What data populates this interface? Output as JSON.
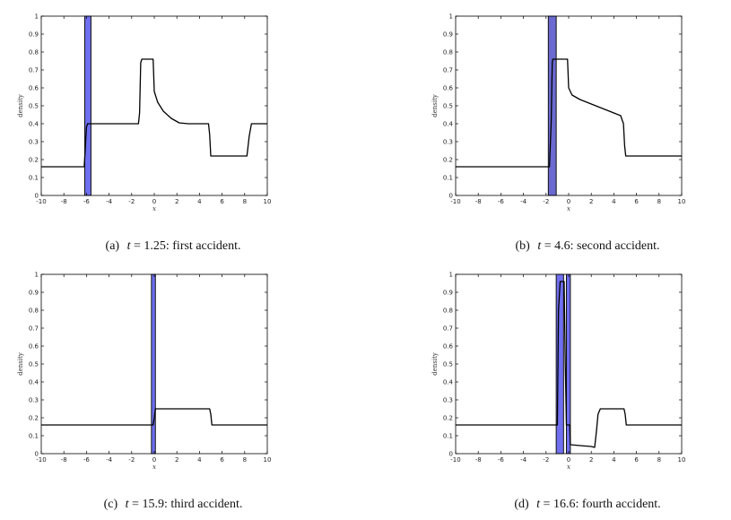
{
  "chart_data": [
    {
      "type": "line",
      "panel_label": "(a)",
      "caption_var": "t",
      "caption_eq": "=",
      "caption_value": "1.25:",
      "caption_text": "first accident.",
      "xlabel": "x",
      "ylabel": "density",
      "xlim": [
        -10,
        10
      ],
      "ylim": [
        0,
        1
      ],
      "xticks": [
        "-10",
        "-8",
        "-6",
        "-4",
        "-2",
        "0",
        "2",
        "4",
        "6",
        "8",
        "10"
      ],
      "yticks": [
        "0",
        "0.1",
        "0.2",
        "0.3",
        "0.4",
        "0.5",
        "0.6",
        "0.7",
        "0.8",
        "0.9",
        "1"
      ],
      "grid": false,
      "bands": [
        {
          "x_start": -6.15,
          "x_end": -5.6,
          "color": "#6f6ff0"
        }
      ],
      "series": [
        {
          "color": "#000000",
          "x": [
            -10,
            -6.2,
            -6.0,
            -5.9,
            -1.4,
            -1.3,
            -1.2,
            -1.1,
            -0.1,
            0.0,
            0.3,
            0.8,
            1.5,
            2.2,
            3.0,
            4.8,
            4.9,
            5.0,
            8.2,
            8.4,
            8.6,
            10
          ],
          "y": [
            0.16,
            0.16,
            0.38,
            0.4,
            0.4,
            0.46,
            0.74,
            0.76,
            0.76,
            0.58,
            0.52,
            0.47,
            0.43,
            0.405,
            0.4,
            0.4,
            0.34,
            0.22,
            0.22,
            0.33,
            0.4,
            0.4
          ]
        }
      ]
    },
    {
      "type": "line",
      "panel_label": "(b)",
      "caption_var": "t",
      "caption_eq": "=",
      "caption_value": "4.6:",
      "caption_text": "second accident.",
      "xlabel": "x",
      "ylabel": "density",
      "xlim": [
        -10,
        10
      ],
      "ylim": [
        0,
        1
      ],
      "xticks": [
        "-10",
        "-8",
        "-6",
        "-4",
        "-2",
        "0",
        "2",
        "4",
        "6",
        "8",
        "10"
      ],
      "yticks": [
        "0",
        "0.1",
        "0.2",
        "0.3",
        "0.4",
        "0.5",
        "0.6",
        "0.7",
        "0.8",
        "0.9",
        "1"
      ],
      "grid": false,
      "bands": [
        {
          "x_start": -1.8,
          "x_end": -1.1,
          "color": "#6a6ad0"
        }
      ],
      "series": [
        {
          "color": "#000000",
          "x": [
            -10,
            -1.9,
            -1.7,
            -1.55,
            -1.45,
            -1.4,
            -0.1,
            0.0,
            0.3,
            1.0,
            2.0,
            3.0,
            4.0,
            4.6,
            4.85,
            4.95,
            5.05,
            10
          ],
          "y": [
            0.16,
            0.16,
            0.16,
            0.4,
            0.74,
            0.76,
            0.76,
            0.6,
            0.56,
            0.535,
            0.51,
            0.485,
            0.46,
            0.445,
            0.4,
            0.28,
            0.22,
            0.22
          ]
        }
      ]
    },
    {
      "type": "line",
      "panel_label": "(c)",
      "caption_var": "t",
      "caption_eq": "=",
      "caption_value": "15.9:",
      "caption_text": "third accident.",
      "xlabel": "x",
      "ylabel": "density",
      "xlim": [
        -10,
        10
      ],
      "ylim": [
        0,
        1
      ],
      "xticks": [
        "-10",
        "-8",
        "-6",
        "-4",
        "-2",
        "0",
        "2",
        "4",
        "6",
        "8",
        "10"
      ],
      "yticks": [
        "0",
        "0.1",
        "0.2",
        "0.3",
        "0.4",
        "0.5",
        "0.6",
        "0.7",
        "0.8",
        "0.9",
        "1"
      ],
      "grid": false,
      "bands": [
        {
          "x_start": -0.25,
          "x_end": 0.1,
          "color": "#6f6ff0"
        }
      ],
      "series": [
        {
          "color": "#000000",
          "x": [
            -10,
            -0.1,
            0.0,
            0.1,
            4.9,
            5.0,
            5.1,
            10
          ],
          "y": [
            0.16,
            0.16,
            0.2,
            0.25,
            0.25,
            0.22,
            0.16,
            0.16
          ]
        }
      ]
    },
    {
      "type": "line",
      "panel_label": "(d)",
      "caption_var": "t",
      "caption_eq": "=",
      "caption_value": "16.6:",
      "caption_text": "fourth accident.",
      "xlabel": "x",
      "ylabel": "density",
      "xlim": [
        -10,
        10
      ],
      "ylim": [
        0,
        1
      ],
      "xticks": [
        "-10",
        "-8",
        "-6",
        "-4",
        "-2",
        "0",
        "2",
        "4",
        "6",
        "8",
        "10"
      ],
      "yticks": [
        "0",
        "0.1",
        "0.2",
        "0.3",
        "0.4",
        "0.5",
        "0.6",
        "0.7",
        "0.8",
        "0.9",
        "1"
      ],
      "grid": false,
      "bands": [
        {
          "x_start": -1.1,
          "x_end": -0.45,
          "color": "#6f6ff0"
        },
        {
          "x_start": -0.2,
          "x_end": 0.15,
          "color": "#6f6ff0"
        }
      ],
      "series": [
        {
          "color": "#000000",
          "x": [
            -10,
            -1.0,
            -0.9,
            -0.75,
            -0.4,
            -0.3,
            -0.2,
            0.1,
            0.15,
            1.0,
            2.0,
            2.3,
            2.45,
            2.6,
            2.8,
            4.9,
            5.0,
            5.1,
            10
          ],
          "y": [
            0.16,
            0.16,
            0.8,
            0.96,
            0.96,
            0.5,
            0.16,
            0.16,
            0.05,
            0.045,
            0.04,
            0.035,
            0.12,
            0.22,
            0.25,
            0.25,
            0.22,
            0.16,
            0.16
          ]
        }
      ]
    }
  ]
}
